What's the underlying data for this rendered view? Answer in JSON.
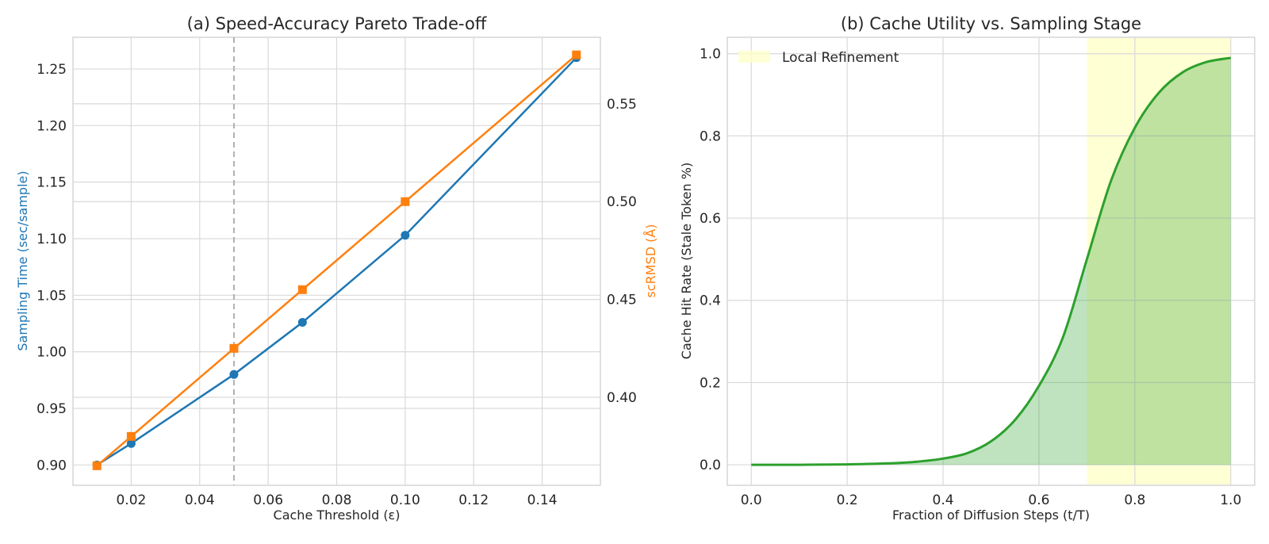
{
  "chart_data": [
    {
      "type": "line",
      "title": "(a) Speed-Accuracy Pareto Trade-off",
      "xlabel": "Cache Threshold (ε)",
      "ylabel": "Sampling Time (sec/sample)",
      "y2label": "scRMSD (Å)",
      "xlim": [
        0.003,
        0.157
      ],
      "ylim": [
        0.882,
        1.278
      ],
      "y2lim": [
        0.355,
        0.584
      ],
      "xticks": [
        "0.02",
        "0.04",
        "0.06",
        "0.08",
        "0.10",
        "0.12",
        "0.14"
      ],
      "yticks": [
        "0.90",
        "0.95",
        "1.00",
        "1.05",
        "1.10",
        "1.15",
        "1.20",
        "1.25"
      ],
      "y2ticks": [
        "0.40",
        "0.45",
        "0.50",
        "0.55"
      ],
      "vline_x": 0.05,
      "grid": true,
      "series": [
        {
          "axis": "left",
          "marker": "circle",
          "color": "#1f77b4",
          "x": [
            0.01,
            0.02,
            0.05,
            0.07,
            0.1,
            0.15
          ],
          "y": [
            0.9,
            0.919,
            0.98,
            1.026,
            1.103,
            1.26
          ]
        },
        {
          "axis": "right",
          "marker": "square",
          "color": "#ff7f0e",
          "x": [
            0.01,
            0.02,
            0.05,
            0.07,
            0.1,
            0.15
          ],
          "y": [
            0.365,
            0.38,
            0.425,
            0.455,
            0.5,
            0.575
          ]
        }
      ]
    },
    {
      "type": "area",
      "title": "(b) Cache Utility vs. Sampling Stage",
      "xlabel": "Fraction of Diffusion Steps (t/T)",
      "ylabel": "Cache Hit Rate (Stale Token %)",
      "xlim": [
        -0.05,
        1.05
      ],
      "ylim": [
        -0.05,
        1.04
      ],
      "xticks": [
        "0.0",
        "0.2",
        "0.4",
        "0.6",
        "0.8",
        "1.0"
      ],
      "yticks": [
        "0.0",
        "0.2",
        "0.4",
        "0.6",
        "0.8",
        "1.0"
      ],
      "grid": true,
      "legend": {
        "label": "Local Refinement",
        "placement": "top-left"
      },
      "shaded_region": [
        0.7,
        1.0
      ],
      "series": [
        {
          "color": "#2ca02c",
          "x": [
            0.0,
            0.1,
            0.2,
            0.3,
            0.35,
            0.4,
            0.45,
            0.5,
            0.55,
            0.6,
            0.65,
            0.7,
            0.75,
            0.8,
            0.85,
            0.9,
            0.95,
            1.0
          ],
          "y": [
            0.0,
            0.0,
            0.001,
            0.004,
            0.008,
            0.015,
            0.028,
            0.057,
            0.109,
            0.192,
            0.31,
            0.5,
            0.69,
            0.82,
            0.905,
            0.955,
            0.98,
            0.99
          ]
        }
      ]
    }
  ]
}
